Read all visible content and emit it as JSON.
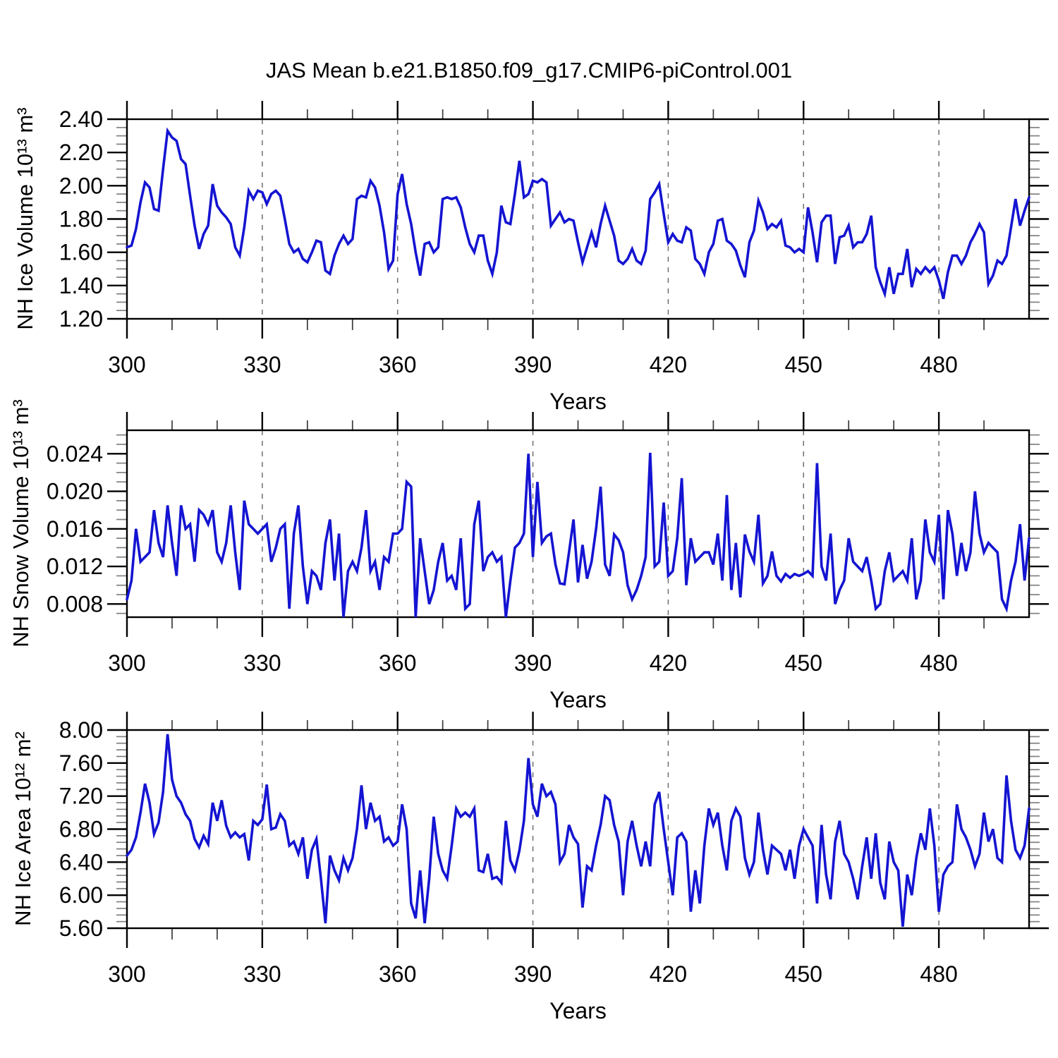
{
  "title": "JAS Mean b.e21.B1850.f09_g17.CMIP6-piControl.001",
  "colors": {
    "line": "#1414d2",
    "frame": "#000000",
    "major_tick": "#000000",
    "minor_tick": "#808080",
    "gridline": "#6e6e6e",
    "background": "#ffffff",
    "text": "#000000"
  },
  "chart_data": [
    {
      "type": "line",
      "series_name": "nh-ice-volume-series",
      "ylabel": "NH Ice Volume 10¹³ m³",
      "xlabel": "Years",
      "xlim": [
        300,
        500
      ],
      "ylim": [
        1.2,
        2.4
      ],
      "grid": "vertical-dashed",
      "legend": "none",
      "xticks": [
        300,
        330,
        360,
        390,
        420,
        450,
        480
      ],
      "xtick_labels": [
        "300",
        "330",
        "360",
        "390",
        "420",
        "450",
        "480"
      ],
      "yticks": [
        2.4,
        2.2,
        2.0,
        1.8,
        1.6,
        1.4,
        1.2
      ],
      "ytick_labels": [
        "2.40",
        "2.20",
        "2.00",
        "1.80",
        "1.60",
        "1.40",
        "1.20"
      ],
      "x_minor": 10,
      "y_minor": 0.05,
      "x_start": 300,
      "values": [
        1.63,
        1.64,
        1.74,
        1.9,
        2.02,
        1.99,
        1.86,
        1.85,
        2.1,
        2.33,
        2.29,
        2.27,
        2.16,
        2.13,
        1.94,
        1.76,
        1.62,
        1.71,
        1.76,
        2.01,
        1.88,
        1.84,
        1.81,
        1.77,
        1.63,
        1.58,
        1.75,
        1.97,
        1.92,
        1.97,
        1.96,
        1.89,
        1.95,
        1.97,
        1.94,
        1.8,
        1.65,
        1.6,
        1.62,
        1.56,
        1.54,
        1.6,
        1.67,
        1.66,
        1.49,
        1.47,
        1.58,
        1.65,
        1.7,
        1.65,
        1.68,
        1.92,
        1.94,
        1.93,
        2.03,
        1.99,
        1.88,
        1.72,
        1.5,
        1.55,
        1.95,
        2.07,
        1.89,
        1.77,
        1.6,
        1.46,
        1.65,
        1.66,
        1.6,
        1.63,
        1.92,
        1.93,
        1.92,
        1.93,
        1.87,
        1.75,
        1.65,
        1.6,
        1.7,
        1.7,
        1.55,
        1.47,
        1.6,
        1.88,
        1.78,
        1.77,
        1.95,
        2.15,
        1.93,
        1.95,
        2.03,
        2.02,
        2.04,
        2.02,
        1.76,
        1.8,
        1.84,
        1.78,
        1.8,
        1.79,
        1.66,
        1.54,
        1.63,
        1.72,
        1.63,
        1.77,
        1.88,
        1.79,
        1.7,
        1.55,
        1.53,
        1.56,
        1.62,
        1.55,
        1.53,
        1.61,
        1.92,
        1.96,
        2.01,
        1.83,
        1.66,
        1.71,
        1.67,
        1.66,
        1.75,
        1.73,
        1.56,
        1.53,
        1.47,
        1.6,
        1.65,
        1.79,
        1.8,
        1.67,
        1.65,
        1.61,
        1.52,
        1.45,
        1.66,
        1.73,
        1.91,
        1.84,
        1.74,
        1.77,
        1.75,
        1.79,
        1.64,
        1.63,
        1.6,
        1.62,
        1.6,
        1.87,
        1.72,
        1.54,
        1.78,
        1.82,
        1.82,
        1.53,
        1.69,
        1.7,
        1.76,
        1.63,
        1.66,
        1.66,
        1.71,
        1.82,
        1.51,
        1.42,
        1.35,
        1.51,
        1.35,
        1.47,
        1.47,
        1.62,
        1.39,
        1.5,
        1.47,
        1.51,
        1.48,
        1.51,
        1.43,
        1.32,
        1.48,
        1.58,
        1.58,
        1.53,
        1.58,
        1.66,
        1.71,
        1.77,
        1.72,
        1.41,
        1.46,
        1.55,
        1.53,
        1.58,
        1.75,
        1.92,
        1.76,
        1.85,
        1.93
      ]
    },
    {
      "type": "line",
      "series_name": "nh-snow-volume-series",
      "ylabel": "NH Snow Volume 10¹³ m³",
      "xlabel": "Years",
      "xlim": [
        300,
        500
      ],
      "ylim": [
        0.0066,
        0.0265
      ],
      "grid": "vertical-dashed",
      "legend": "none",
      "xticks": [
        300,
        330,
        360,
        390,
        420,
        450,
        480
      ],
      "xtick_labels": [
        "300",
        "330",
        "360",
        "390",
        "420",
        "450",
        "480"
      ],
      "yticks": [
        0.024,
        0.02,
        0.016,
        0.012,
        0.008
      ],
      "ytick_labels": [
        "0.024",
        "0.020",
        "0.016",
        "0.012",
        "0.008"
      ],
      "x_minor": 10,
      "y_minor": 0.001,
      "x_start": 300,
      "values": [
        0.0085,
        0.0105,
        0.016,
        0.0125,
        0.013,
        0.0135,
        0.018,
        0.0145,
        0.013,
        0.0185,
        0.0145,
        0.011,
        0.0185,
        0.016,
        0.0165,
        0.0125,
        0.018,
        0.0175,
        0.0165,
        0.018,
        0.0135,
        0.0125,
        0.0145,
        0.0185,
        0.0135,
        0.0095,
        0.019,
        0.0165,
        0.016,
        0.0155,
        0.016,
        0.0165,
        0.0125,
        0.014,
        0.016,
        0.0165,
        0.0075,
        0.0155,
        0.0185,
        0.012,
        0.008,
        0.0115,
        0.011,
        0.0095,
        0.0145,
        0.017,
        0.0105,
        0.0155,
        0.0065,
        0.0115,
        0.0125,
        0.0115,
        0.014,
        0.018,
        0.0115,
        0.0125,
        0.0095,
        0.013,
        0.0125,
        0.0155,
        0.0155,
        0.016,
        0.021,
        0.0205,
        0.0065,
        0.015,
        0.0115,
        0.008,
        0.0095,
        0.0125,
        0.0145,
        0.0105,
        0.011,
        0.0095,
        0.015,
        0.0075,
        0.008,
        0.0165,
        0.019,
        0.0115,
        0.013,
        0.0135,
        0.0125,
        0.013,
        0.0065,
        0.0105,
        0.014,
        0.0145,
        0.0155,
        0.024,
        0.013,
        0.021,
        0.0145,
        0.0152,
        0.0155,
        0.0122,
        0.0102,
        0.0101,
        0.0135,
        0.017,
        0.0103,
        0.0143,
        0.0107,
        0.0125,
        0.016,
        0.0205,
        0.0122,
        0.011,
        0.0154,
        0.0148,
        0.0135,
        0.01,
        0.0085,
        0.0095,
        0.011,
        0.013,
        0.0241,
        0.012,
        0.0125,
        0.0188,
        0.011,
        0.0115,
        0.015,
        0.0214,
        0.01,
        0.015,
        0.0125,
        0.013,
        0.0135,
        0.0135,
        0.0122,
        0.0155,
        0.0105,
        0.0196,
        0.0095,
        0.0145,
        0.0087,
        0.0154,
        0.0136,
        0.0125,
        0.0175,
        0.0102,
        0.011,
        0.0136,
        0.011,
        0.0104,
        0.0112,
        0.0108,
        0.0112,
        0.011,
        0.0112,
        0.0115,
        0.011,
        0.023,
        0.012,
        0.0105,
        0.0155,
        0.008,
        0.0095,
        0.0105,
        0.015,
        0.0125,
        0.012,
        0.0115,
        0.013,
        0.0105,
        0.0075,
        0.008,
        0.0115,
        0.0135,
        0.0105,
        0.011,
        0.0115,
        0.0105,
        0.015,
        0.0085,
        0.0105,
        0.017,
        0.0135,
        0.0125,
        0.0175,
        0.0085,
        0.018,
        0.0155,
        0.011,
        0.0145,
        0.0115,
        0.0135,
        0.02,
        0.0155,
        0.0135,
        0.0145,
        0.014,
        0.0135,
        0.0085,
        0.0075,
        0.0105,
        0.0125,
        0.0165,
        0.0105,
        0.015
      ]
    },
    {
      "type": "line",
      "series_name": "nh-ice-area-series",
      "ylabel": "NH Ice Area 10¹² m²",
      "xlabel": "Years",
      "xlim": [
        300,
        500
      ],
      "ylim": [
        5.6,
        8.0
      ],
      "grid": "vertical-dashed",
      "legend": "none",
      "xticks": [
        300,
        330,
        360,
        390,
        420,
        450,
        480
      ],
      "xtick_labels": [
        "300",
        "330",
        "360",
        "390",
        "420",
        "450",
        "480"
      ],
      "yticks": [
        8.0,
        7.6,
        7.2,
        6.8,
        6.4,
        6.0,
        5.6
      ],
      "ytick_labels": [
        "8.00",
        "7.60",
        "7.20",
        "6.80",
        "6.40",
        "6.00",
        "5.60"
      ],
      "x_minor": 10,
      "y_minor": 0.08,
      "x_start": 300,
      "values": [
        6.48,
        6.55,
        6.7,
        7.0,
        7.35,
        7.12,
        6.74,
        6.88,
        7.25,
        7.95,
        7.4,
        7.2,
        7.12,
        6.98,
        6.9,
        6.68,
        6.58,
        6.72,
        6.62,
        7.12,
        6.9,
        7.15,
        6.84,
        6.7,
        6.76,
        6.7,
        6.74,
        6.42,
        6.9,
        6.85,
        6.92,
        7.34,
        6.8,
        6.82,
        6.98,
        6.9,
        6.6,
        6.65,
        6.5,
        6.7,
        6.2,
        6.55,
        6.68,
        6.2,
        5.66,
        6.48,
        6.3,
        6.18,
        6.45,
        6.3,
        6.45,
        6.8,
        7.33,
        6.8,
        7.12,
        6.9,
        6.95,
        6.65,
        6.7,
        6.6,
        6.65,
        7.1,
        6.8,
        5.9,
        5.72,
        6.3,
        5.66,
        6.2,
        6.95,
        6.5,
        6.3,
        6.2,
        6.6,
        7.05,
        6.95,
        7.0,
        6.95,
        7.05,
        6.3,
        6.28,
        6.5,
        6.2,
        6.22,
        6.15,
        6.9,
        6.42,
        6.3,
        6.54,
        6.9,
        7.66,
        7.1,
        6.95,
        7.35,
        7.2,
        7.25,
        7.1,
        6.4,
        6.5,
        6.85,
        6.7,
        6.62,
        5.85,
        6.35,
        6.3,
        6.6,
        6.85,
        7.2,
        7.15,
        6.85,
        6.65,
        6.0,
        6.65,
        6.9,
        6.6,
        6.35,
        6.65,
        6.35,
        7.1,
        7.25,
        6.8,
        6.4,
        6.0,
        6.7,
        6.75,
        6.65,
        5.8,
        6.3,
        5.9,
        6.6,
        7.05,
        6.85,
        7.0,
        6.6,
        6.3,
        6.9,
        7.05,
        6.95,
        6.45,
        6.25,
        6.4,
        7.0,
        6.55,
        6.25,
        6.6,
        6.55,
        6.5,
        6.3,
        6.55,
        6.2,
        6.6,
        6.8,
        6.7,
        6.6,
        5.9,
        6.85,
        6.25,
        5.95,
        6.65,
        6.9,
        6.5,
        6.4,
        6.2,
        5.95,
        6.35,
        6.7,
        6.2,
        6.75,
        6.15,
        5.95,
        6.65,
        6.4,
        6.3,
        5.62,
        6.25,
        6.0,
        6.45,
        6.75,
        6.55,
        7.05,
        6.6,
        5.8,
        6.25,
        6.35,
        6.4,
        7.1,
        6.8,
        6.7,
        6.55,
        6.35,
        6.5,
        7.0,
        6.65,
        6.8,
        6.45,
        6.4,
        7.45,
        6.9,
        6.55,
        6.45,
        6.6,
        7.05
      ]
    }
  ]
}
